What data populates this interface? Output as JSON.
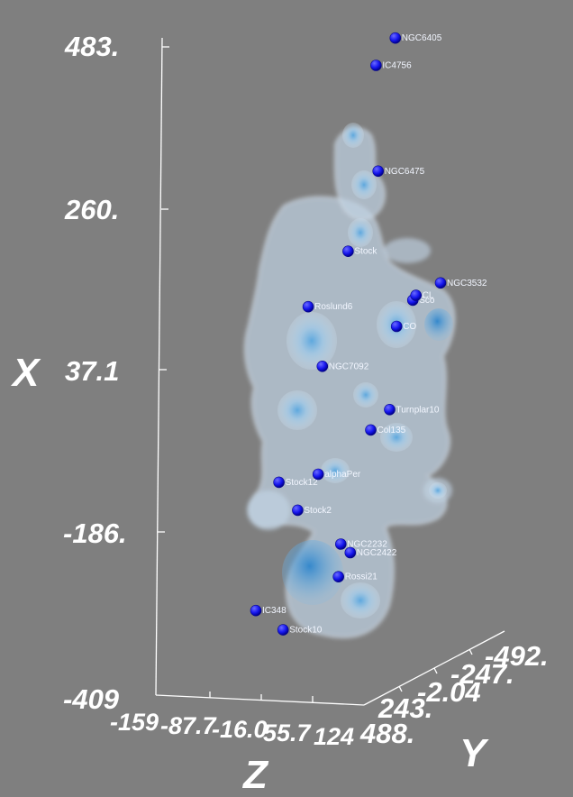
{
  "chart_data": {
    "type": "scatter",
    "projection": "3d",
    "title": "",
    "axes": {
      "x": {
        "label": "X",
        "range": [
          -409,
          483
        ],
        "ticks": [
          "483.",
          "260.",
          "37.1",
          "-186.",
          "-409"
        ]
      },
      "y": {
        "label": "Y",
        "range": [
          -492,
          488
        ],
        "ticks": [
          "-492.",
          "-247.",
          "-2.04",
          "243.",
          "488."
        ]
      },
      "z": {
        "label": "Z",
        "range": [
          -159,
          124
        ],
        "ticks": [
          "-159",
          "-87.7",
          "-16.0",
          "55.7",
          "124"
        ]
      }
    },
    "surface": "translucent blue density isosurface",
    "colors": {
      "background": "#7f7f7f",
      "point": "#1a1aff",
      "surface": "#bcd7ee",
      "axis": "#ffffff"
    },
    "points": [
      {
        "label": "NGC6405",
        "x": 430,
        "y": -120,
        "z": 40
      },
      {
        "label": "IC4756",
        "x": 395,
        "y": -90,
        "z": 20
      },
      {
        "label": "NGC6475",
        "x": 255,
        "y": -60,
        "z": 30
      },
      {
        "label": "Stock",
        "x": 150,
        "y": -10,
        "z": 0
      },
      {
        "label": "Roslund6",
        "x": 80,
        "y": 60,
        "z": -40
      },
      {
        "label": "NGC3532",
        "x": 75,
        "y": -350,
        "z": 60
      },
      {
        "label": "Sco",
        "x": 60,
        "y": -260,
        "z": 40
      },
      {
        "label": "CL",
        "x": 70,
        "y": -230,
        "z": 50
      },
      {
        "label": "CO",
        "x": 30,
        "y": -200,
        "z": 30
      },
      {
        "label": "NGC7092",
        "x": 0,
        "y": 60,
        "z": -20
      },
      {
        "label": "Turnplar10",
        "x": -90,
        "y": -260,
        "z": 10
      },
      {
        "label": "Col135",
        "x": -110,
        "y": -180,
        "z": 0
      },
      {
        "label": "Stock12",
        "x": -150,
        "y": 150,
        "z": -60
      },
      {
        "label": "alphaPer",
        "x": -150,
        "y": 30,
        "z": -30
      },
      {
        "label": "Stock2",
        "x": -190,
        "y": 120,
        "z": -40
      },
      {
        "label": "NGC2232",
        "x": -250,
        "y": -30,
        "z": -10
      },
      {
        "label": "NGC2422",
        "x": -280,
        "y": -200,
        "z": -30
      },
      {
        "label": "Rossi21",
        "x": -310,
        "y": -170,
        "z": -40
      },
      {
        "label": "IC348",
        "x": -320,
        "y": 200,
        "z": -80
      },
      {
        "label": "Stock10",
        "x": -360,
        "y": 60,
        "z": -70
      }
    ]
  }
}
